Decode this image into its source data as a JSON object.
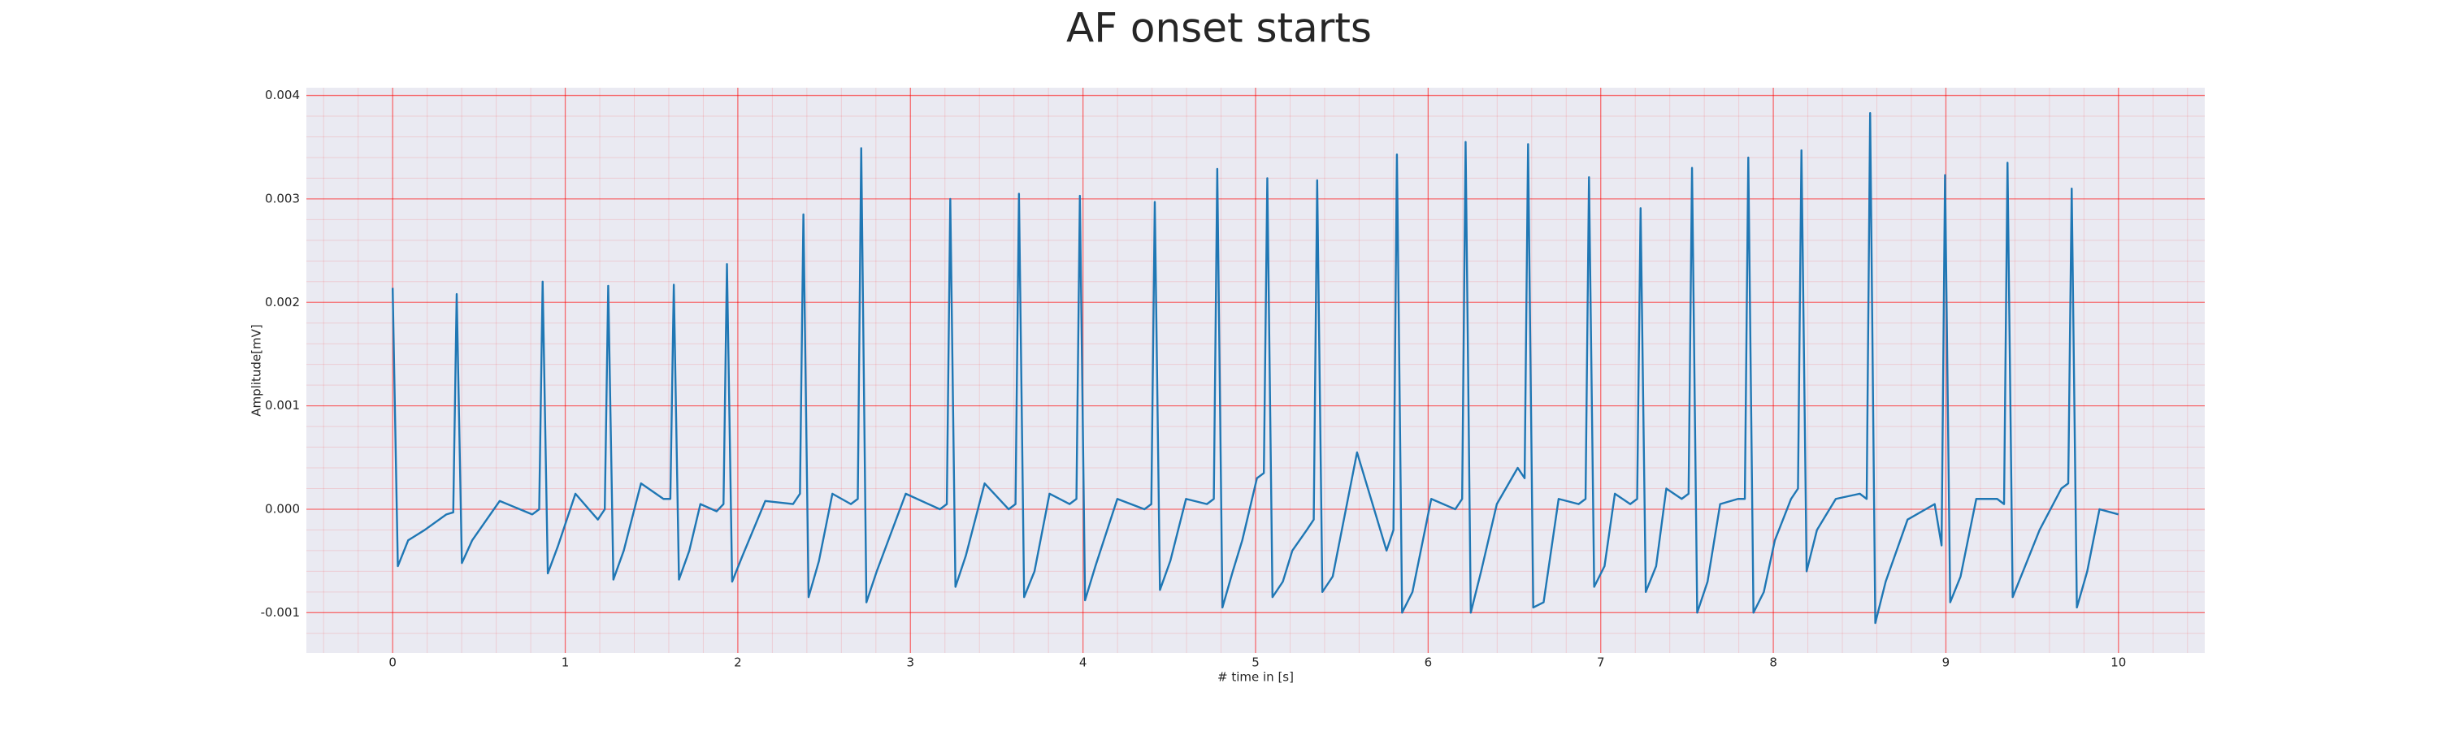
{
  "chart_data": {
    "type": "line",
    "title": "AF onset starts",
    "x_label": "# time in [s]",
    "y_label": "Amplitude[mV]",
    "grid": true,
    "minor_grid": true,
    "grid_color": "#ff0000",
    "background": "#eaeaf2",
    "xlim": [
      -0.5,
      10.5
    ],
    "ylim": [
      -0.00139,
      0.004075
    ],
    "xticks": [
      0,
      1,
      2,
      3,
      4,
      5,
      6,
      7,
      8,
      9,
      10
    ],
    "yticks": [
      -0.001,
      {
        "value": 0,
        "label": "0.000"
      },
      0.001,
      0.002,
      0.003,
      0.004
    ],
    "series": [
      {
        "color": "#1f77b4",
        "x": [
          0,
          0.03,
          0.09,
          0.186,
          0.311,
          0.351,
          0.371,
          0.401,
          0.461,
          0.62,
          0.809,
          0.849,
          0.869,
          0.899,
          0.959,
          1.059,
          1.189,
          1.229,
          1.249,
          1.279,
          1.339,
          1.439,
          1.569,
          1.609,
          1.629,
          1.659,
          1.719,
          1.783,
          1.877,
          1.917,
          1.937,
          1.967,
          2.027,
          2.159,
          2.32,
          2.36,
          2.38,
          2.41,
          2.47,
          2.548,
          2.655,
          2.695,
          2.715,
          2.745,
          2.805,
          2.973,
          3.171,
          3.211,
          3.231,
          3.261,
          3.321,
          3.43,
          3.569,
          3.609,
          3.629,
          3.659,
          3.719,
          3.806,
          3.922,
          3.962,
          3.982,
          4.012,
          4.072,
          4.199,
          4.356,
          4.396,
          4.416,
          4.446,
          4.506,
          4.597,
          4.718,
          4.758,
          4.778,
          4.808,
          4.868,
          4.923,
          5.008,
          5.048,
          5.068,
          5.098,
          5.158,
          5.213,
          5.297,
          5.337,
          5.357,
          5.387,
          5.447,
          5.588,
          5.759,
          5.799,
          5.819,
          5.849,
          5.909,
          6.018,
          6.157,
          6.197,
          6.217,
          6.247,
          6.307,
          6.398,
          6.519,
          6.559,
          6.579,
          6.609,
          6.669,
          6.756,
          6.872,
          6.912,
          6.932,
          6.962,
          7.022,
          7.082,
          7.171,
          7.211,
          7.231,
          7.261,
          7.321,
          7.38,
          7.469,
          7.509,
          7.529,
          7.559,
          7.619,
          7.692,
          7.795,
          7.835,
          7.855,
          7.885,
          7.945,
          8.009,
          8.103,
          8.143,
          8.163,
          8.193,
          8.253,
          8.362,
          8.501,
          8.541,
          8.561,
          8.591,
          8.651,
          8.778,
          8.935,
          8.975,
          8.995,
          9.025,
          9.085,
          9.176,
          9.297,
          9.337,
          9.357,
          9.387,
          9.447,
          9.543,
          9.669,
          9.709,
          9.729,
          9.759,
          9.819,
          9.89,
          10
        ],
        "values": [
          0.00214,
          -0.00055,
          -0.0003,
          -0.0002,
          -5e-05,
          -3e-05,
          0.00208,
          -0.00052,
          -0.0003,
          8e-05,
          -5e-05,
          0,
          0.0022,
          -0.00062,
          -0.00035,
          0.00015,
          -0.0001,
          0,
          0.00216,
          -0.00068,
          -0.0004,
          0.00025,
          0.0001,
          0.0001,
          0.00217,
          -0.00068,
          -0.0004,
          5e-05,
          -2e-05,
          5e-05,
          0.00237,
          -0.0007,
          -0.00045,
          8e-05,
          5e-05,
          0.00015,
          0.00285,
          -0.00085,
          -0.0005,
          0.00015,
          5e-05,
          0.0001,
          0.00349,
          -0.0009,
          -0.0006,
          0.00015,
          0,
          5e-05,
          0.003,
          -0.00075,
          -0.00045,
          0.00025,
          0,
          5e-05,
          0.00305,
          -0.00085,
          -0.0006,
          0.00015,
          5e-05,
          0.0001,
          0.00303,
          -0.00088,
          -0.00055,
          0.0001,
          0,
          5e-05,
          0.00297,
          -0.00078,
          -0.0005,
          0.0001,
          5e-05,
          0.0001,
          0.00329,
          -0.00095,
          -0.0006,
          -0.0003,
          0.0003,
          0.00035,
          0.0032,
          -0.00085,
          -0.0007,
          -0.0004,
          -0.0002,
          -0.0001,
          0.00318,
          -0.0008,
          -0.00065,
          0.00055,
          -0.0004,
          -0.0002,
          0.00343,
          -0.001,
          -0.0008,
          0.0001,
          0,
          0.0001,
          0.00355,
          -0.001,
          -0.0006,
          5e-05,
          0.0004,
          0.0003,
          0.00353,
          -0.00095,
          -0.0009,
          0.0001,
          5e-05,
          0.0001,
          0.00321,
          -0.00075,
          -0.00055,
          0.00015,
          5e-05,
          0.0001,
          0.00291,
          -0.0008,
          -0.00055,
          0.0002,
          0.0001,
          0.00015,
          0.0033,
          -0.001,
          -0.0007,
          5e-05,
          0.0001,
          0.0001,
          0.0034,
          -0.001,
          -0.0008,
          -0.0003,
          0.0001,
          0.0002,
          0.00347,
          -0.0006,
          -0.0002,
          0.0001,
          0.00015,
          0.0001,
          0.00383,
          -0.0011,
          -0.0007,
          -0.0001,
          5e-05,
          -0.00035,
          0.00323,
          -0.0009,
          -0.00065,
          0.0001,
          0.0001,
          5e-05,
          0.00335,
          -0.00085,
          -0.0006,
          -0.0002,
          0.0002,
          0.00025,
          0.0031,
          -0.00095,
          -0.0006,
          0,
          -5e-05
        ]
      }
    ]
  }
}
